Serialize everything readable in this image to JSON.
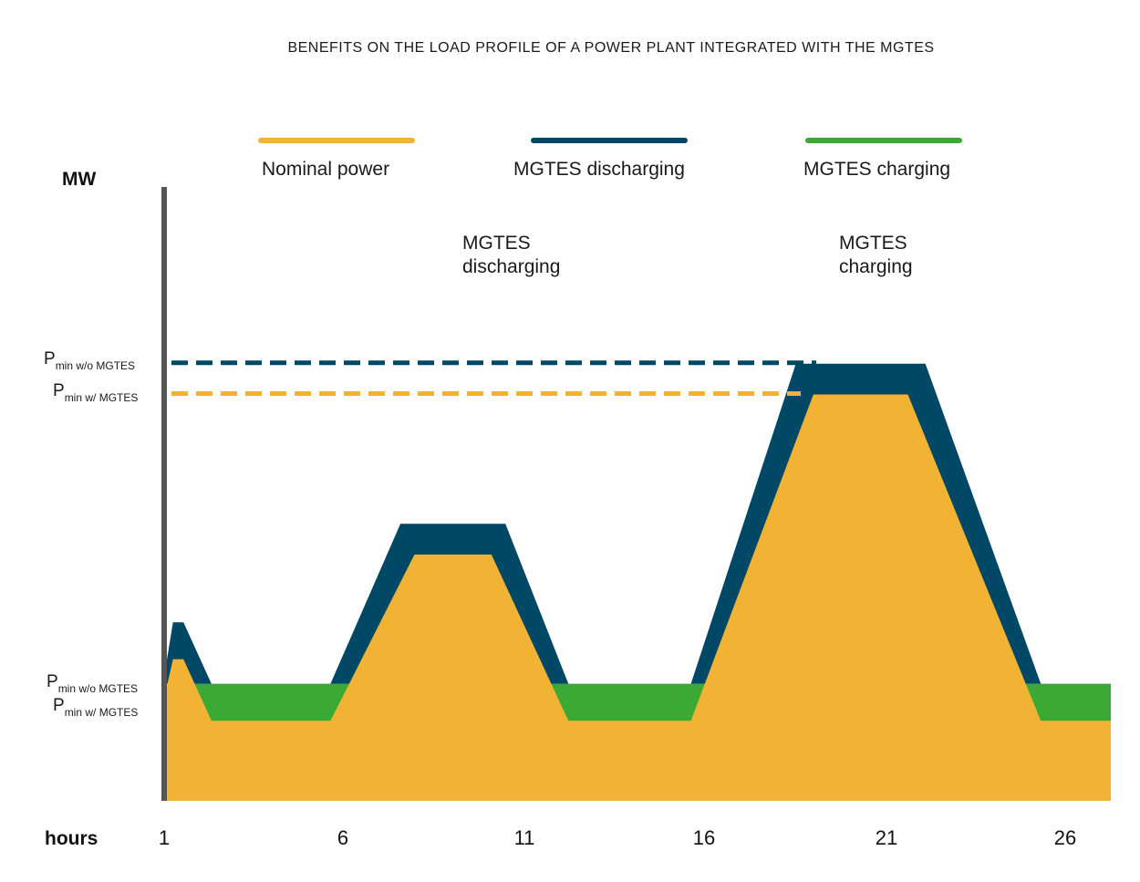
{
  "chart_data": {
    "type": "area",
    "title": "BENEFITS ON THE LOAD PROFILE OF A POWER PLANT INTEGRATED WITH THE MGTES",
    "xlabel": "hours",
    "ylabel": "MW",
    "xlim": [
      1,
      28
    ],
    "ylim": [
      0,
      1
    ],
    "x_ticks": [
      "1",
      "6",
      "11",
      "16",
      "21",
      "26"
    ],
    "legend": [
      "Nominal power",
      "MGTES discharging",
      "MGTES charging"
    ],
    "legend_position": "top",
    "colors": {
      "nominal": "#F2B233",
      "discharging": "#004866",
      "charging": "#3AAA35",
      "axis": "#555555"
    },
    "series": [
      {
        "name": "Nominal power",
        "x": [
          1,
          1.2,
          1.5,
          2.3,
          5.7,
          8.1,
          10.3,
          12.5,
          16.0,
          19.5,
          22.2,
          26.0,
          28.0
        ],
        "values": [
          0.18,
          0.23,
          0.23,
          0.13,
          0.13,
          0.4,
          0.4,
          0.13,
          0.13,
          0.66,
          0.66,
          0.13,
          0.13
        ]
      },
      {
        "name": "MGTES discharging",
        "x": [
          1,
          1.2,
          1.5,
          2.3,
          5.7,
          7.7,
          10.7,
          12.5,
          16.0,
          19.0,
          22.7,
          26.0,
          28.0
        ],
        "values": [
          0.22,
          0.29,
          0.29,
          0.19,
          0.19,
          0.45,
          0.45,
          0.19,
          0.19,
          0.71,
          0.71,
          0.19,
          0.19
        ]
      },
      {
        "name": "MGTES charging",
        "x": [
          1.7,
          5.7,
          12.5,
          16.0,
          26.0,
          28.0
        ],
        "values": [
          0.19,
          0.19,
          0.19,
          0.19,
          0.19,
          0.19
        ]
      }
    ],
    "reference_lines": [
      {
        "label_main": "P",
        "label_sub": "min  w/o MGTES",
        "y": 0.71,
        "style": "dashed",
        "color": "#004866"
      },
      {
        "label_main": "P",
        "label_sub": "min w/ MGTES",
        "y": 0.66,
        "style": "dashed",
        "color": "#F2B233"
      }
    ],
    "annotations": [
      {
        "text": "MGTES\ndischarging"
      },
      {
        "text": "MGTES\ncharging"
      }
    ],
    "low_labels": [
      {
        "label_main": "P",
        "label_sub": "min w/o MGTES"
      },
      {
        "label_main": "P",
        "label_sub": "min w/ MGTES"
      }
    ],
    "grid": false
  }
}
